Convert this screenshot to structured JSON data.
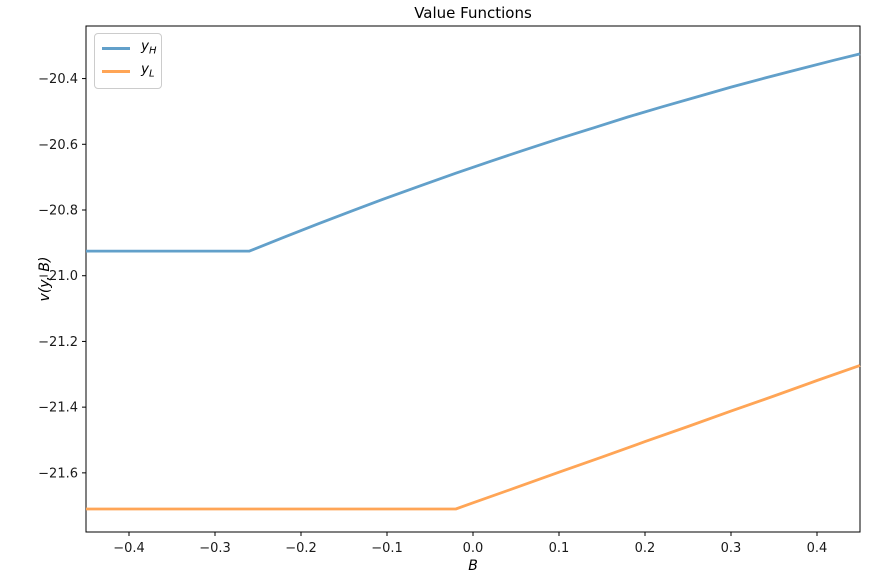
{
  "figure": {
    "background": "#ffffff",
    "text_color": "#1a1a1a",
    "spine_color": "#000000"
  },
  "chart_data": {
    "type": "line",
    "title": "Value Functions",
    "xlabel": "B",
    "ylabel": "v(y, B)",
    "xlim": [
      -0.45,
      0.45
    ],
    "ylim": [
      -21.78,
      -20.24
    ],
    "grid": false,
    "x_ticks": {
      "values": [
        -0.4,
        -0.3,
        -0.2,
        -0.1,
        0.0,
        0.1,
        0.2,
        0.3,
        0.4
      ],
      "labels": [
        "−0.4",
        "−0.3",
        "−0.2",
        "−0.1",
        "0.0",
        "0.1",
        "0.2",
        "0.3",
        "0.4"
      ]
    },
    "y_ticks": {
      "values": [
        -20.4,
        -20.6,
        -20.8,
        -21.0,
        -21.2,
        -21.4,
        -21.6
      ],
      "labels": [
        "−20.4",
        "−20.6",
        "−20.8",
        "−21.0",
        "−21.2",
        "−21.4",
        "−21.6"
      ]
    },
    "legend": {
      "position": "upper left",
      "entries": [
        {
          "base": "y",
          "sub": "H"
        },
        {
          "base": "y",
          "sub": "L"
        }
      ]
    },
    "series": [
      {
        "name": "y_H",
        "color": "#62a0ca",
        "line_width": 2.8,
        "x": [
          -0.45,
          -0.26,
          -0.22,
          -0.18,
          -0.14,
          -0.1,
          -0.06,
          -0.02,
          0.02,
          0.06,
          0.1,
          0.14,
          0.18,
          0.22,
          0.26,
          0.3,
          0.34,
          0.38,
          0.42,
          0.45
        ],
        "y": [
          -20.925,
          -20.925,
          -20.883,
          -20.842,
          -20.802,
          -20.763,
          -20.725,
          -20.688,
          -20.652,
          -20.617,
          -20.583,
          -20.55,
          -20.517,
          -20.486,
          -20.456,
          -20.426,
          -20.398,
          -20.371,
          -20.344,
          -20.325
        ]
      },
      {
        "name": "y_L",
        "color": "#ffa556",
        "line_width": 2.8,
        "x": [
          -0.45,
          -0.02,
          0.0,
          0.05,
          0.1,
          0.15,
          0.2,
          0.25,
          0.3,
          0.35,
          0.4,
          0.45
        ],
        "y": [
          -21.71,
          -21.71,
          -21.691,
          -21.645,
          -21.598,
          -21.552,
          -21.505,
          -21.459,
          -21.412,
          -21.366,
          -21.319,
          -21.273
        ]
      }
    ]
  }
}
